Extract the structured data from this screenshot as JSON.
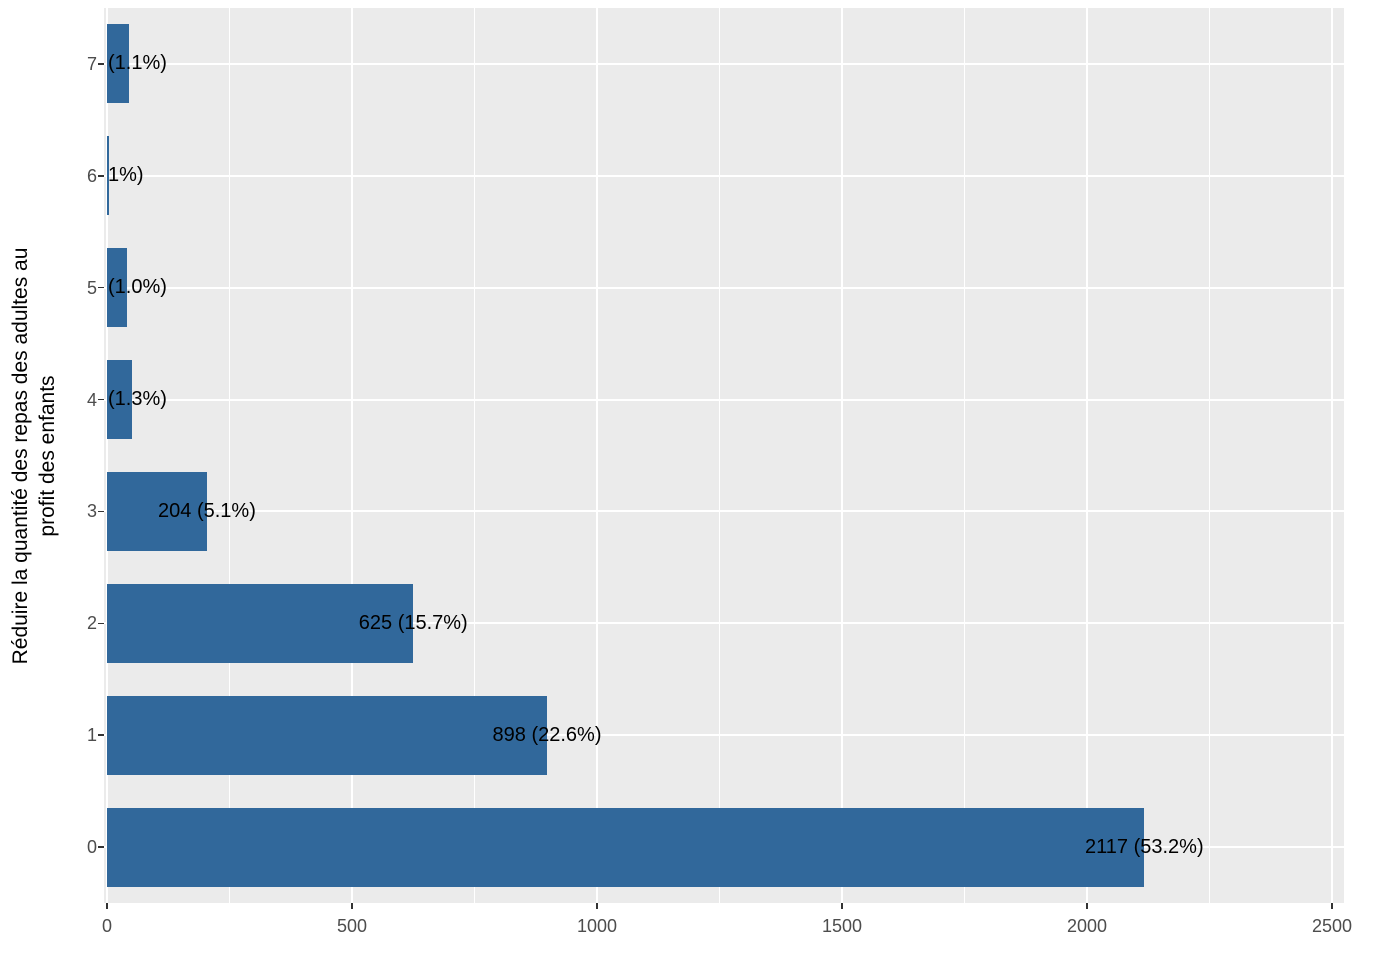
{
  "chart_data": {
    "type": "bar",
    "orientation": "horizontal",
    "title": "",
    "xlabel": "",
    "ylabel": "Réduire la quantité des repas des adultes au profit des enfants",
    "ylabel_lines": [
      "Réduire la quantité des repas des adultes au",
      "profit des enfants"
    ],
    "legend": "none",
    "grid": "on",
    "xlim": [
      0,
      2528
    ],
    "x_ticks": [
      0,
      500,
      1000,
      1500,
      2000,
      2500
    ],
    "x_minor_ticks": [
      250,
      750,
      1250,
      1750,
      2250
    ],
    "categories_bottom_to_top": [
      "0",
      "1",
      "2",
      "3",
      "4",
      "5",
      "6",
      "7"
    ],
    "rows_top_to_bottom": [
      {
        "category": "7",
        "value": 44,
        "label": "(1.1%)",
        "label_mode": "edge"
      },
      {
        "category": "6",
        "value": 4,
        "label": "1%)",
        "label_mode": "edge"
      },
      {
        "category": "5",
        "value": 40,
        "label": "(1.0%)",
        "label_mode": "edge"
      },
      {
        "category": "4",
        "value": 52,
        "label": "(1.3%)",
        "label_mode": "edge"
      },
      {
        "category": "3",
        "value": 204,
        "label": "204 (5.1%)",
        "label_mode": "center"
      },
      {
        "category": "2",
        "value": 625,
        "label": "625 (15.7%)",
        "label_mode": "center"
      },
      {
        "category": "1",
        "value": 898,
        "label": "898 (22.6%)",
        "label_mode": "center"
      },
      {
        "category": "0",
        "value": 2117,
        "label": "2117 (53.2%)",
        "label_mode": "center"
      }
    ],
    "colors": {
      "bar": "#31689B",
      "panel_background": "#EBEBEB",
      "gridline": "#FFFFFF",
      "tick_label": "#4D4D4D",
      "bar_label": "#000000"
    }
  }
}
